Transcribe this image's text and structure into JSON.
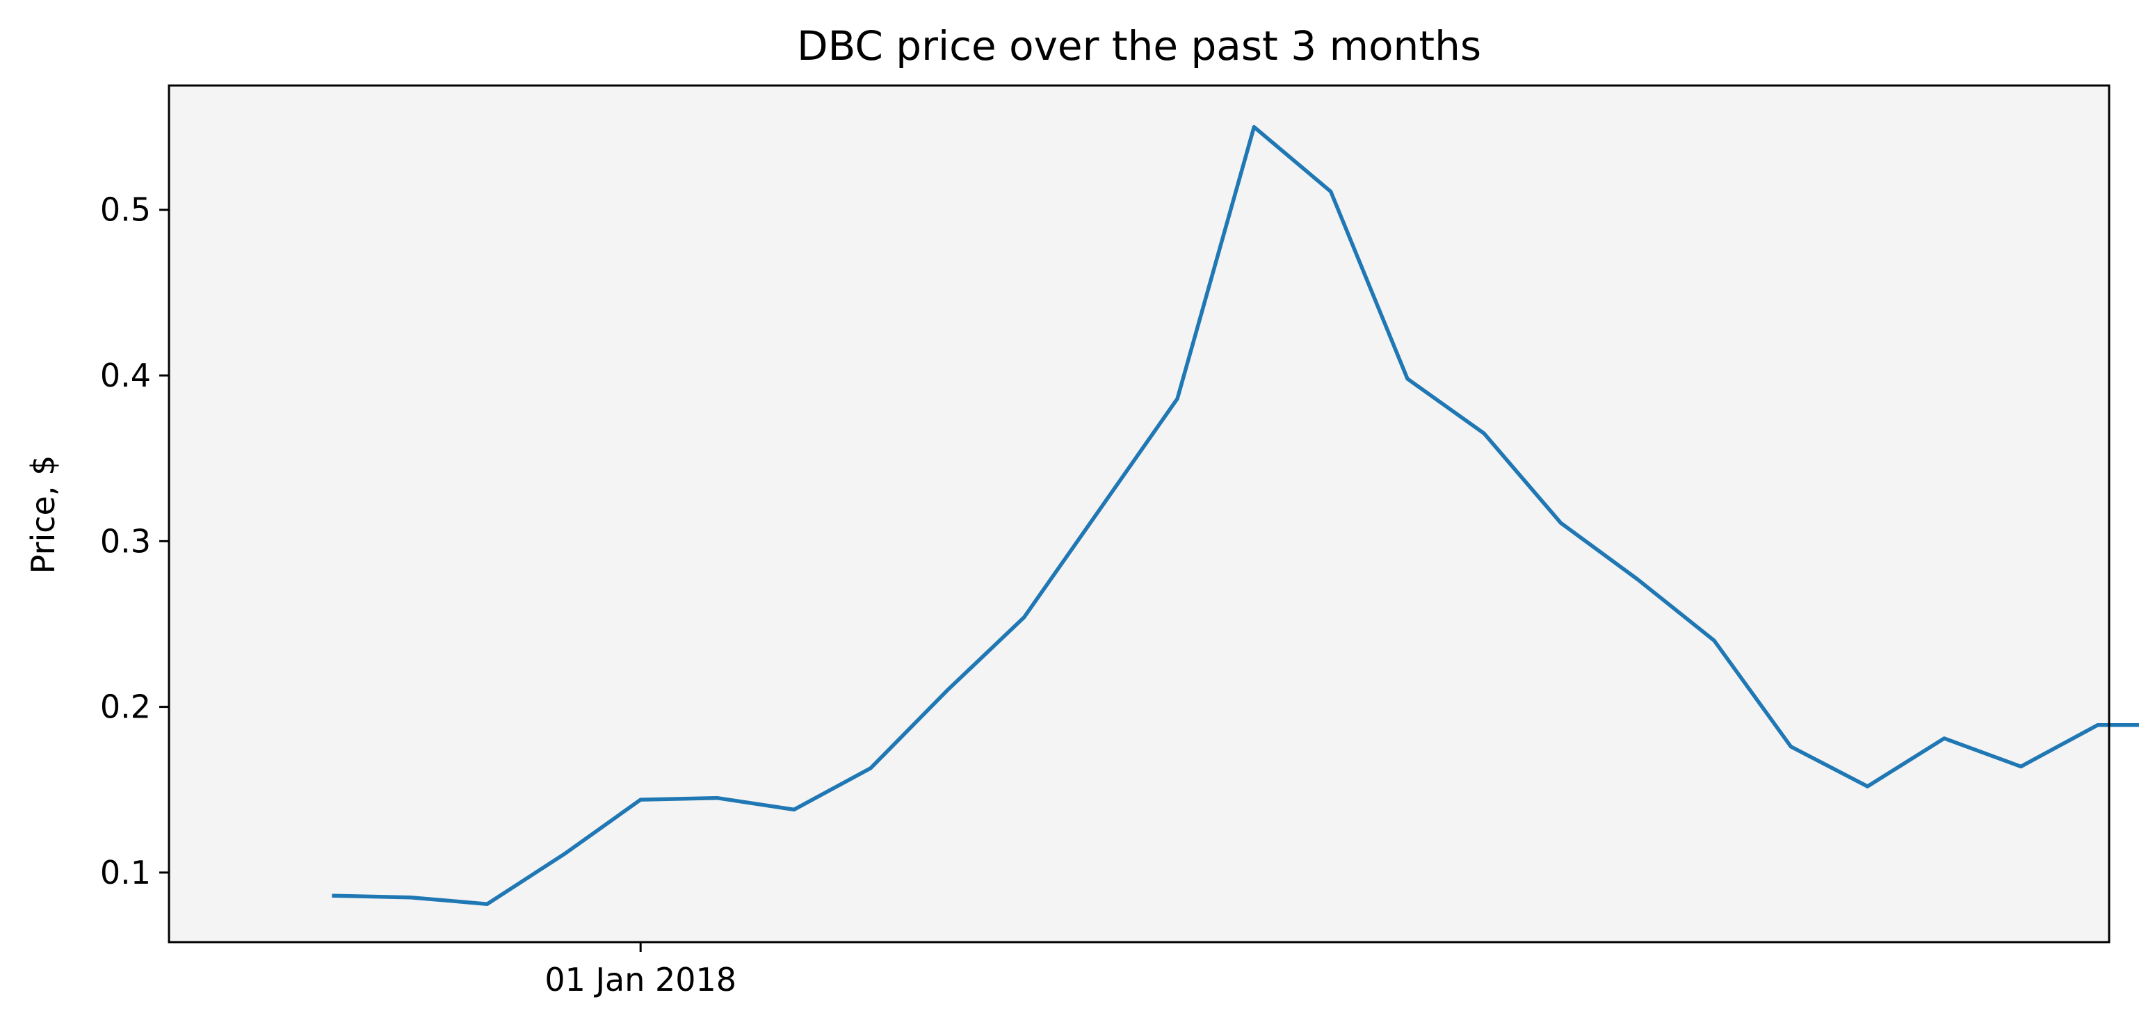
{
  "chart_data": {
    "type": "line",
    "title": "DBC price over the past 3 months",
    "xlabel": "",
    "ylabel": "Price, $",
    "x_ticks": [
      {
        "value": 5,
        "label": "01 Jan 2018"
      }
    ],
    "y_ticks": [
      0.1,
      0.2,
      0.3,
      0.4,
      0.5
    ],
    "xlim": [
      -1.15,
      24.15
    ],
    "ylim": [
      0.058,
      0.575
    ],
    "grid": false,
    "legend": "none",
    "plot_background": "#f4f4f4",
    "series": [
      {
        "color": "#1f77b4",
        "x": [
          1,
          2,
          3,
          4,
          5,
          6,
          7,
          8,
          9,
          10,
          11,
          12,
          13,
          14,
          15,
          16,
          17,
          18,
          19,
          20,
          21,
          22,
          23,
          24,
          25
        ],
        "values": [
          0.086,
          0.085,
          0.081,
          0.111,
          0.144,
          0.145,
          0.138,
          0.163,
          0.21,
          0.254,
          0.32,
          0.386,
          0.55,
          0.511,
          0.398,
          0.365,
          0.311,
          0.277,
          0.24,
          0.176,
          0.152,
          0.181,
          0.164,
          0.189,
          0.189
        ]
      }
    ]
  }
}
